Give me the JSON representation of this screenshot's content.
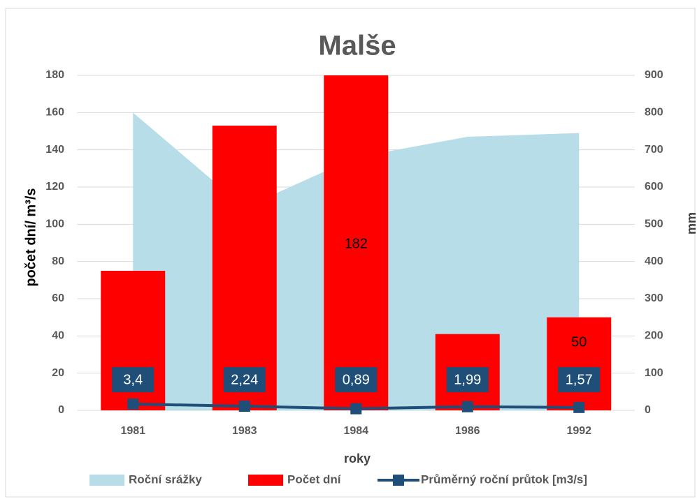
{
  "chart_data": {
    "type": "combo",
    "title": "Malše",
    "x_label": "roky",
    "y_label": "počet dní/ m³/s",
    "y2_label": "mm",
    "categories": [
      "1981",
      "1983",
      "1984",
      "1986",
      "1992"
    ],
    "ylim": [
      0,
      180
    ],
    "yticks": [
      0,
      20,
      40,
      60,
      80,
      100,
      120,
      140,
      160,
      180
    ],
    "y2lim": [
      0,
      900
    ],
    "y2ticks": [
      0,
      100,
      200,
      300,
      400,
      500,
      600,
      700,
      800,
      900
    ],
    "grid": true,
    "legend": "bottom",
    "series": [
      {
        "name": "Roční srážky",
        "type": "area",
        "axis": "y2",
        "color": "#b7dde8",
        "values": [
          800,
          545,
          680,
          735,
          745
        ]
      },
      {
        "name": "Počet dní",
        "type": "bar",
        "color": "#ff0000",
        "values": [
          75,
          153,
          182,
          41,
          50
        ],
        "value_labels": [
          null,
          null,
          "182",
          null,
          "50"
        ]
      },
      {
        "name": "Průměrný roční průtok [m3/s]",
        "type": "line",
        "color": "#1f4e79",
        "values": [
          3.4,
          2.24,
          0.89,
          1.99,
          1.57
        ],
        "value_labels": [
          "3,4",
          "2,24",
          "0,89",
          "1,99",
          "1,57"
        ]
      }
    ]
  }
}
